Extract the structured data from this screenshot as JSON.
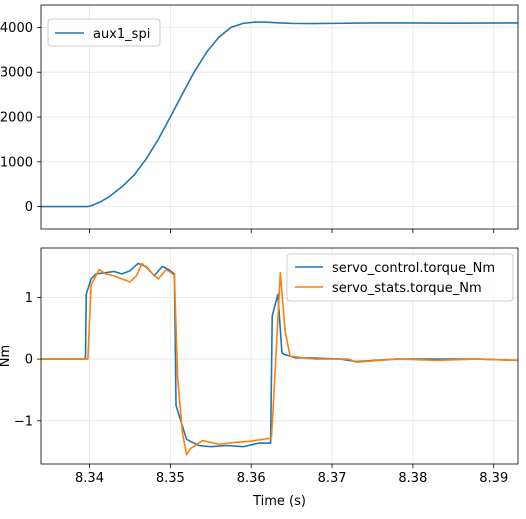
{
  "chart_data": [
    {
      "type": "line",
      "xlim": [
        8.334,
        8.393
      ],
      "ylim": [
        -500,
        4500
      ],
      "y_ticks": [
        0,
        1000,
        2000,
        3000,
        4000
      ],
      "y_tick_labels": [
        "0",
        "1000",
        "2000",
        "3000",
        "4000"
      ],
      "x_ticks": [
        8.34,
        8.35,
        8.36,
        8.37,
        8.38,
        8.39
      ],
      "grid": true,
      "legend": "top-left",
      "series": [
        {
          "name": "aux1_spi",
          "color": "#1f77b4",
          "x": [
            8.334,
            8.3365,
            8.339,
            8.3398,
            8.3405,
            8.3415,
            8.3425,
            8.344,
            8.3455,
            8.347,
            8.3485,
            8.35,
            8.3515,
            8.353,
            8.3545,
            8.356,
            8.3575,
            8.359,
            8.3605,
            8.3615,
            8.3625,
            8.3635,
            8.365,
            8.3675,
            8.37,
            8.375,
            8.38,
            8.385,
            8.393
          ],
          "y": [
            0,
            0,
            0,
            0,
            40,
            120,
            230,
            440,
            700,
            1060,
            1500,
            2000,
            2520,
            3020,
            3450,
            3780,
            4000,
            4090,
            4120,
            4120,
            4110,
            4100,
            4090,
            4085,
            4090,
            4100,
            4100,
            4095,
            4100
          ]
        }
      ]
    },
    {
      "type": "line",
      "xlim": [
        8.334,
        8.393
      ],
      "ylim": [
        -1.7,
        1.8
      ],
      "y_ticks": [
        -1,
        0,
        1
      ],
      "y_tick_labels": [
        "−1",
        "0",
        "1"
      ],
      "x_ticks": [
        8.34,
        8.35,
        8.36,
        8.37,
        8.38,
        8.39
      ],
      "x_tick_labels": [
        "8.34",
        "8.35",
        "8.36",
        "8.37",
        "8.38",
        "8.39"
      ],
      "xlabel": "Time (s)",
      "ylabel": "Nm",
      "grid": true,
      "legend": "top-right",
      "series": [
        {
          "name": "servo_control.torque_Nm",
          "color": "#1f77b4",
          "x": [
            8.334,
            8.3395,
            8.3396,
            8.3402,
            8.3408,
            8.342,
            8.343,
            8.344,
            8.345,
            8.346,
            8.347,
            8.348,
            8.349,
            8.3498,
            8.3505,
            8.3507,
            8.352,
            8.3535,
            8.355,
            8.357,
            8.359,
            8.361,
            8.3624,
            8.3626,
            8.3633,
            8.3638,
            8.364,
            8.3655,
            8.367,
            8.371,
            8.373,
            8.378,
            8.383,
            8.388,
            8.393
          ],
          "y": [
            0,
            0,
            1.05,
            1.3,
            1.38,
            1.4,
            1.42,
            1.38,
            1.43,
            1.55,
            1.5,
            1.35,
            1.5,
            1.45,
            1.38,
            -0.75,
            -1.3,
            -1.4,
            -1.42,
            -1.4,
            -1.42,
            -1.36,
            -1.36,
            0.7,
            1.05,
            0.1,
            0.08,
            0.02,
            0.02,
            0.0,
            -0.04,
            0.0,
            0.0,
            0.0,
            -0.02
          ]
        },
        {
          "name": "servo_stats.torque_Nm",
          "color": "#ff7f0e",
          "x": [
            8.334,
            8.3398,
            8.3402,
            8.3412,
            8.342,
            8.343,
            8.344,
            8.345,
            8.3458,
            8.3465,
            8.3475,
            8.3485,
            8.3495,
            8.3505,
            8.3509,
            8.3515,
            8.352,
            8.3525,
            8.354,
            8.356,
            8.358,
            8.36,
            8.3625,
            8.3628,
            8.3636,
            8.3642,
            8.3648,
            8.3665,
            8.368,
            8.372,
            8.373,
            8.378,
            8.383,
            8.388,
            8.393
          ],
          "y": [
            0,
            0,
            1.2,
            1.45,
            1.38,
            1.35,
            1.3,
            1.25,
            1.35,
            1.55,
            1.42,
            1.3,
            1.45,
            1.36,
            -0.3,
            -1.2,
            -1.55,
            -1.45,
            -1.32,
            -1.38,
            -1.35,
            -1.33,
            -1.28,
            -0.6,
            1.4,
            0.45,
            0.05,
            0.02,
            0.0,
            0.0,
            -0.05,
            0.0,
            -0.02,
            0.0,
            -0.02
          ]
        }
      ]
    }
  ]
}
